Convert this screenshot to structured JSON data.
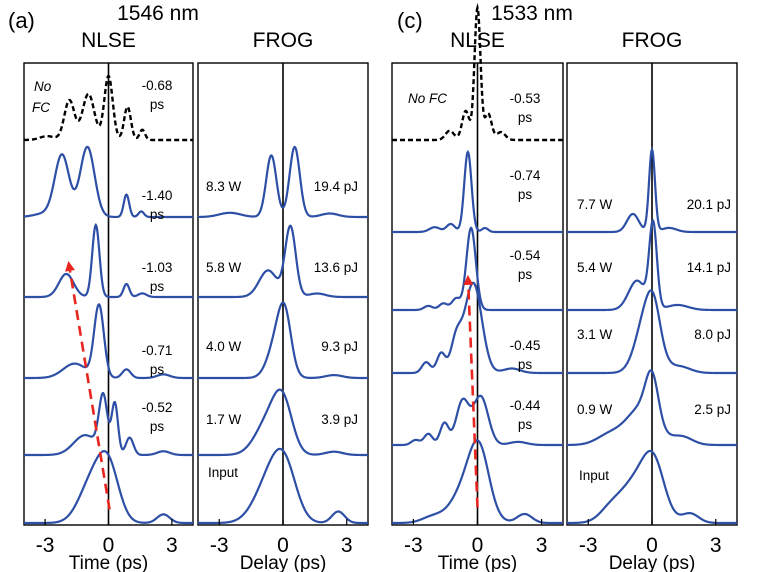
{
  "chart_data": [
    {
      "panel_label": "(a)",
      "wavelength": "1546 nm",
      "type": "line",
      "subplots": [
        {
          "title": "NLSE",
          "xlabel": "Time (ps)",
          "xlim": [
            -4,
            4
          ],
          "xticks": [
            "-3",
            "0",
            "3"
          ],
          "traces": [
            {
              "order": 0,
              "label": "No FC",
              "style": "dashed",
              "annotation": [
                "-0.68",
                "ps"
              ]
            },
            {
              "order": 1,
              "label": "",
              "style": "solid",
              "annotation": [
                "-1.40",
                "ps"
              ]
            },
            {
              "order": 2,
              "label": "",
              "style": "solid",
              "annotation": [
                "-1.03",
                "ps"
              ]
            },
            {
              "order": 3,
              "label": "",
              "style": "solid",
              "annotation": [
                "-0.71",
                "ps"
              ]
            },
            {
              "order": 4,
              "label": "",
              "style": "solid",
              "annotation": [
                "-0.52",
                "ps"
              ]
            },
            {
              "order": 5,
              "label": "",
              "style": "solid",
              "annotation": []
            }
          ],
          "arrow": {
            "from": [
              0.05,
              4.8
            ],
            "to": [
              -1.9,
              1.55
            ],
            "style": "red-dashed"
          }
        },
        {
          "title": "FROG",
          "xlabel": "Delay (ps)",
          "xlim": [
            -4,
            4
          ],
          "xticks": [
            "-3",
            "0",
            "3"
          ],
          "traces": [
            {
              "order": 1,
              "power": "8.3 W",
              "energy": "19.4 pJ"
            },
            {
              "order": 2,
              "power": "5.8 W",
              "energy": "13.6 pJ"
            },
            {
              "order": 3,
              "power": "4.0 W",
              "energy": "9.3 pJ"
            },
            {
              "order": 4,
              "power": "1.7 W",
              "energy": "3.9 pJ"
            },
            {
              "order": 5,
              "power": "Input",
              "energy": ""
            }
          ]
        }
      ]
    },
    {
      "panel_label": "(c)",
      "wavelength": "1533 nm",
      "type": "line",
      "subplots": [
        {
          "title": "NLSE",
          "xlabel": "Time (ps)",
          "xlim": [
            -4,
            4
          ],
          "xticks": [
            "-3",
            "0",
            "3"
          ],
          "traces": [
            {
              "order": 0,
              "label": "No FC",
              "style": "dashed",
              "annotation": [
                "-0.53",
                "ps"
              ]
            },
            {
              "order": 1,
              "label": "",
              "style": "solid",
              "annotation": [
                "-0.74",
                "ps"
              ]
            },
            {
              "order": 2,
              "label": "",
              "style": "solid",
              "annotation": [
                "-0.54",
                "ps"
              ]
            },
            {
              "order": 3,
              "label": "",
              "style": "solid",
              "annotation": [
                "-0.45",
                "ps"
              ]
            },
            {
              "order": 4,
              "label": "",
              "style": "solid",
              "annotation": [
                "-0.44",
                "ps"
              ]
            },
            {
              "order": 5,
              "label": "",
              "style": "solid",
              "annotation": []
            }
          ],
          "arrow": {
            "from": [
              0.0,
              4.8
            ],
            "to": [
              -0.45,
              1.55
            ],
            "style": "red-dashed"
          }
        },
        {
          "title": "FROG",
          "xlabel": "Delay (ps)",
          "xlim": [
            -4,
            4
          ],
          "xticks": [
            "-3",
            "0",
            "3"
          ],
          "traces": [
            {
              "order": 1,
              "power": "7.7 W",
              "energy": "20.1 pJ"
            },
            {
              "order": 2,
              "power": "5.4 W",
              "energy": "14.1 pJ"
            },
            {
              "order": 3,
              "power": "3.1 W",
              "energy": "8.0 pJ"
            },
            {
              "order": 4,
              "power": "0.9 W",
              "energy": "2.5 pJ"
            },
            {
              "order": 5,
              "power": "Input",
              "energy": ""
            }
          ]
        }
      ]
    }
  ],
  "colors": {
    "trace": "#2d4fa5",
    "dashed_trace": "#000000",
    "arrow": "#e8251f",
    "frame": "#000000",
    "zero_line": "#000000"
  }
}
